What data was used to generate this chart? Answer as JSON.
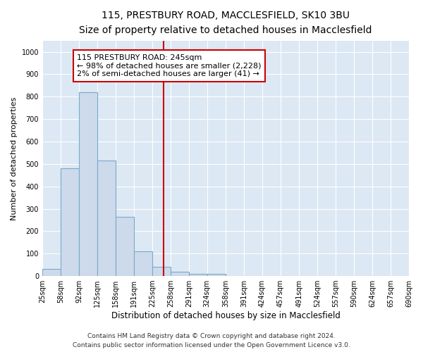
{
  "title": "115, PRESTBURY ROAD, MACCLESFIELD, SK10 3BU",
  "subtitle": "Size of property relative to detached houses in Macclesfield",
  "xlabel": "Distribution of detached houses by size in Macclesfield",
  "ylabel": "Number of detached properties",
  "bin_edges": [
    25,
    58,
    92,
    125,
    158,
    191,
    225,
    258,
    291,
    324,
    358,
    391,
    424,
    457,
    491,
    524,
    557,
    590,
    624,
    657,
    690
  ],
  "bar_heights": [
    33,
    480,
    820,
    515,
    263,
    110,
    40,
    20,
    10,
    10,
    0,
    0,
    0,
    0,
    0,
    0,
    0,
    0,
    0,
    0
  ],
  "bar_facecolor": "#ccdaeb",
  "bar_edgecolor": "#7aaac8",
  "reference_line_x": 245,
  "reference_line_color": "#cc0000",
  "annotation_text": "115 PRESTBURY ROAD: 245sqm\n← 98% of detached houses are smaller (2,228)\n2% of semi-detached houses are larger (41) →",
  "annotation_bbox_facecolor": "white",
  "annotation_bbox_edgecolor": "#cc0000",
  "ylim": [
    0,
    1050
  ],
  "yticks": [
    0,
    100,
    200,
    300,
    400,
    500,
    600,
    700,
    800,
    900,
    1000
  ],
  "axes_facecolor": "#dce8f4",
  "grid_color": "#ffffff",
  "footer_line1": "Contains HM Land Registry data © Crown copyright and database right 2024.",
  "footer_line2": "Contains public sector information licensed under the Open Government Licence v3.0.",
  "title_fontsize": 10,
  "subtitle_fontsize": 9,
  "xlabel_fontsize": 8.5,
  "ylabel_fontsize": 8,
  "tick_fontsize": 7,
  "annotation_fontsize": 8,
  "footer_fontsize": 6.5
}
